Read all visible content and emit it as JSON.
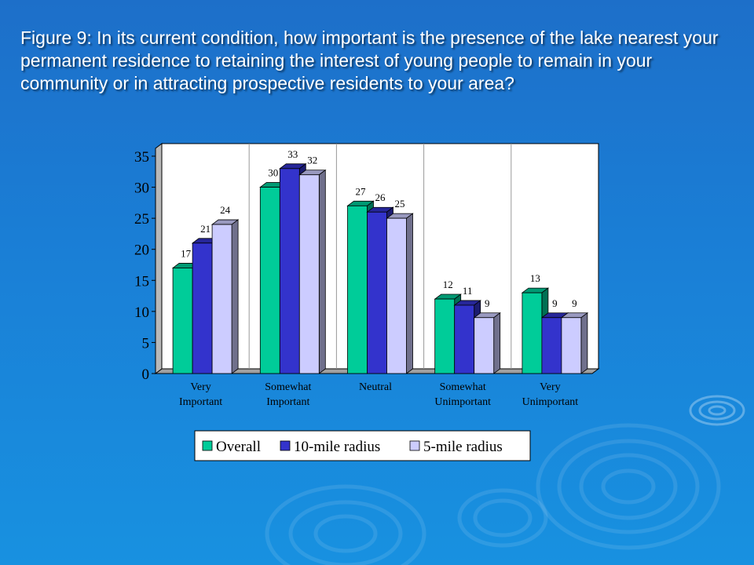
{
  "slide": {
    "title": "Figure 9: In its current condition, how important is the presence of the lake nearest your permanent residence to retaining the interest of young people to remain in your community or in attracting prospective residents to your area?"
  },
  "colors": {
    "overall": "#00cc99",
    "ten_mile": "#3333cc",
    "five_mile": "#ccccff",
    "background": "#1a7fd6"
  },
  "chart_data": {
    "type": "bar",
    "categories": [
      [
        "Very",
        "Important"
      ],
      [
        "Somewhat",
        "Important"
      ],
      [
        "Neutral"
      ],
      [
        "Somewhat",
        "Unimportant"
      ],
      [
        "Very",
        "Unimportant"
      ]
    ],
    "series": [
      {
        "name": "Overall",
        "values": [
          17,
          30,
          27,
          12,
          13
        ]
      },
      {
        "name": "10-mile radius",
        "values": [
          21,
          33,
          26,
          11,
          9
        ]
      },
      {
        "name": "5-mile radius",
        "values": [
          24,
          32,
          25,
          9,
          9
        ]
      }
    ],
    "ylim": [
      0,
      35
    ],
    "yticks": [
      0,
      5,
      10,
      15,
      20,
      25,
      30,
      35
    ],
    "grid": "vertical separators between categories",
    "legend": "bottom",
    "title": "",
    "xlabel": "",
    "ylabel": ""
  }
}
